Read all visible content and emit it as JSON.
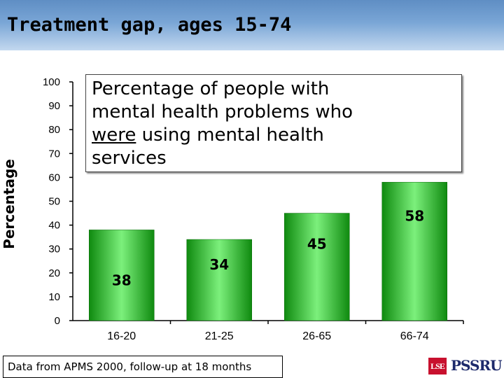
{
  "header": {
    "title": "Treatment gap, ages 15-74"
  },
  "caption": {
    "line1": "Percentage of people with",
    "line2": "mental health problems who",
    "underlined_word": "were",
    "line3_rest": " using mental health",
    "line4": "services"
  },
  "source_note": "Data from APMS 2000, follow-up at 18 months",
  "logo": {
    "lse": "LSE",
    "pssru": "PSSRU"
  },
  "chart_data": {
    "type": "bar",
    "categories": [
      "16-20",
      "21-25",
      "26-65",
      "66-74"
    ],
    "values": [
      38,
      34,
      45,
      58
    ],
    "data_labels": [
      "38",
      "34",
      "45",
      "58"
    ],
    "ylabel": "Percentage",
    "xlabel": "",
    "ylim": [
      0,
      100
    ],
    "yticks": [
      0,
      10,
      20,
      30,
      40,
      50,
      60,
      70,
      80,
      90,
      100
    ],
    "grid": false,
    "bar_color": "#22c922",
    "bar_color_light": "#7cf07c",
    "bar_color_dark": "#0f8a0f"
  }
}
